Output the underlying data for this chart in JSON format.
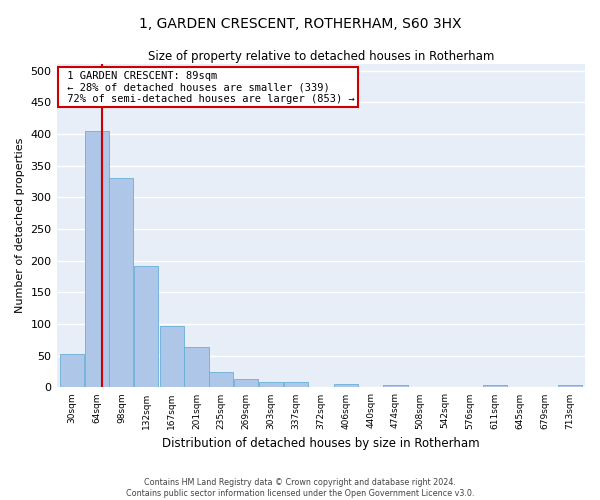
{
  "title": "1, GARDEN CRESCENT, ROTHERHAM, S60 3HX",
  "subtitle": "Size of property relative to detached houses in Rotherham",
  "xlabel": "Distribution of detached houses by size in Rotherham",
  "ylabel": "Number of detached properties",
  "property_size": 89,
  "property_label": "1 GARDEN CRESCENT: 89sqm",
  "pct_smaller": 28,
  "count_smaller": 339,
  "pct_larger_semi": 72,
  "count_larger_semi": 853,
  "bar_left_edges": [
    30,
    64,
    98,
    132,
    167,
    201,
    235,
    269,
    303,
    337,
    372,
    406,
    440,
    474,
    508,
    542,
    576,
    611,
    645,
    679,
    713
  ],
  "bar_heights": [
    52,
    405,
    330,
    192,
    97,
    63,
    24,
    13,
    9,
    9,
    0,
    5,
    0,
    4,
    0,
    0,
    0,
    4,
    0,
    0,
    4
  ],
  "bin_width": 34,
  "bar_color": "#aec6e8",
  "bar_edge_color": "#6aaed6",
  "vline_color": "#cc0000",
  "vline_x": 89,
  "annotation_box_color": "#cc0000",
  "background_color": "#e8eef7",
  "grid_color": "#ffffff",
  "ylim": [
    0,
    510
  ],
  "yticks": [
    0,
    50,
    100,
    150,
    200,
    250,
    300,
    350,
    400,
    450,
    500
  ],
  "footer1": "Contains HM Land Registry data © Crown copyright and database right 2024.",
  "footer2": "Contains public sector information licensed under the Open Government Licence v3.0."
}
